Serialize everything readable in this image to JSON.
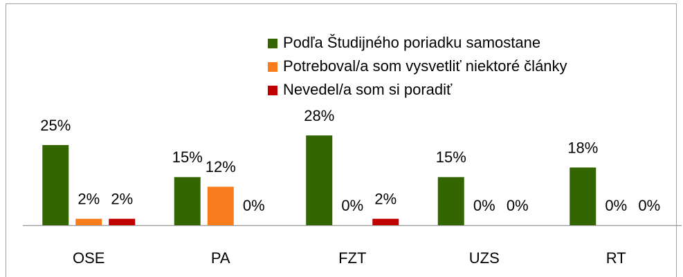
{
  "chart_data": {
    "type": "bar",
    "categories": [
      "OSE",
      "PA",
      "FZT",
      "UZS",
      "RT"
    ],
    "series": [
      {
        "name": "Podľa Študijného poriadku samostane",
        "color": "#336600",
        "values": [
          25,
          15,
          28,
          15,
          18
        ],
        "value_labels": [
          "25%",
          "15%",
          "28%",
          "15%",
          "18%"
        ]
      },
      {
        "name": "Potreboval/a som vysvetliť niektoré články",
        "color": "#f97c1c",
        "values": [
          2,
          12,
          0,
          0,
          0
        ],
        "value_labels": [
          "2%",
          "12%",
          "0%",
          "0%",
          "0%"
        ]
      },
      {
        "name": "Nevedel/a som si poradiť",
        "color": "#c00000",
        "values": [
          2,
          0,
          2,
          0,
          0
        ],
        "value_labels": [
          "2%",
          "0%",
          "2%",
          "0%",
          "0%"
        ]
      }
    ],
    "legend": "top-right"
  }
}
